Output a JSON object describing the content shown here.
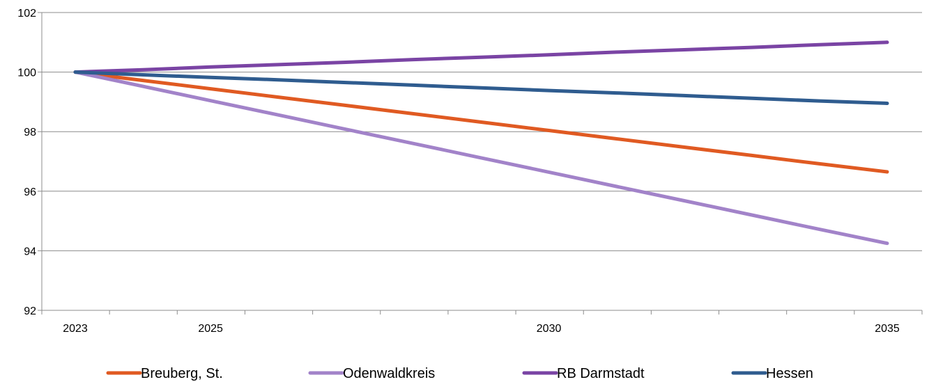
{
  "chart_data": {
    "type": "line",
    "title": "",
    "xlabel": "",
    "ylabel": "",
    "x": [
      2023,
      2024,
      2025,
      2026,
      2027,
      2028,
      2029,
      2030,
      2031,
      2032,
      2033,
      2034,
      2035
    ],
    "x_tick_labels": [
      {
        "x": 2023,
        "label": "2023"
      },
      {
        "x": 2025,
        "label": "2025"
      },
      {
        "x": 2030,
        "label": "2030"
      },
      {
        "x": 2035,
        "label": "2035"
      }
    ],
    "ylim": [
      92,
      102
    ],
    "y_ticks": [
      92,
      94,
      96,
      98,
      100,
      102
    ],
    "y_tick_labels": [
      "92",
      "94",
      "96",
      "98",
      "100",
      "102"
    ],
    "grid": "horizontal",
    "legend_position": "bottom",
    "series": [
      {
        "name": "Breuberg, St.",
        "color": "#e05a22",
        "values": [
          100,
          99.72,
          99.44,
          99.16,
          98.88,
          98.6,
          98.32,
          98.04,
          97.76,
          97.48,
          97.2,
          96.92,
          96.65
        ]
      },
      {
        "name": "Odenwaldkreis",
        "color": "#a283c9",
        "values": [
          100,
          99.52,
          99.04,
          98.56,
          98.08,
          97.6,
          97.12,
          96.64,
          96.16,
          95.68,
          95.2,
          94.72,
          94.25
        ]
      },
      {
        "name": "RB Darmstadt",
        "color": "#7a44a4",
        "values": [
          100,
          100.08,
          100.17,
          100.25,
          100.33,
          100.42,
          100.5,
          100.58,
          100.67,
          100.75,
          100.83,
          100.92,
          101.0
        ]
      },
      {
        "name": "Hessen",
        "color": "#2f5c8f",
        "values": [
          100,
          99.91,
          99.82,
          99.74,
          99.65,
          99.56,
          99.47,
          99.38,
          99.3,
          99.21,
          99.12,
          99.03,
          98.95
        ]
      }
    ]
  }
}
